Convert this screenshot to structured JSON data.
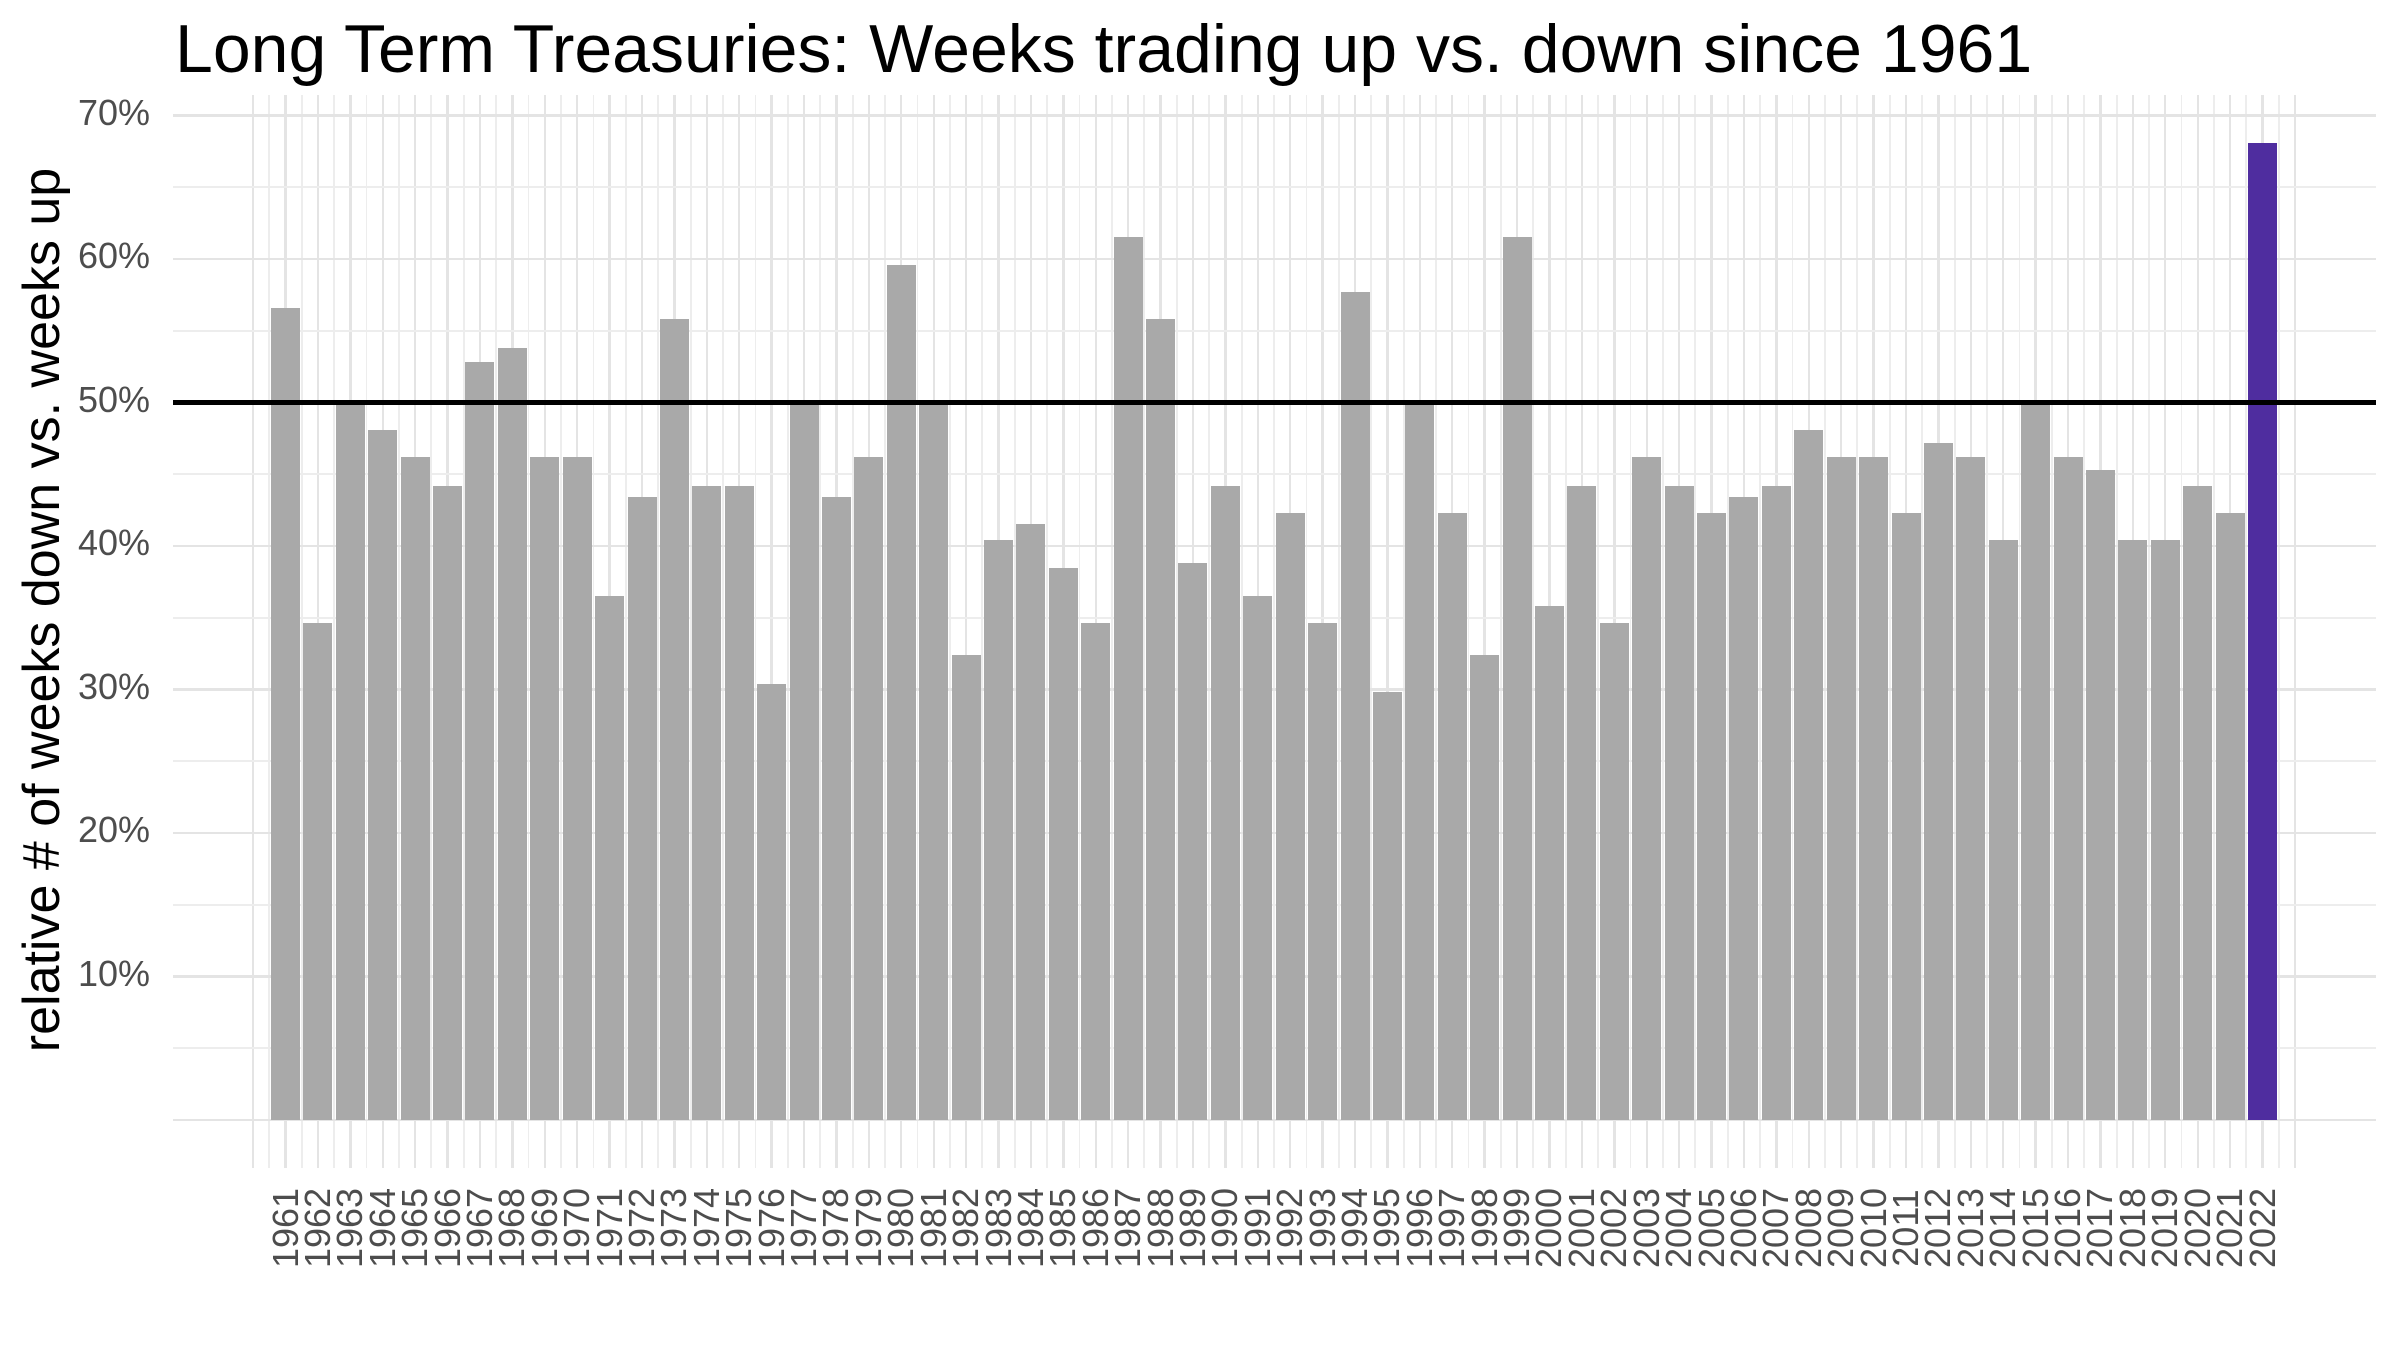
{
  "chart": {
    "title": "Long Term Treasuries: Weeks trading up vs. down since 1961",
    "ylabel": "relative # of weeks down vs. weeks up"
  },
  "chart_data": {
    "type": "bar",
    "title": "Long Term Treasuries: Weeks trading up vs. down since 1961",
    "xlabel": "",
    "ylabel": "relative # of weeks down vs. weeks up",
    "categories": [
      1961,
      1962,
      1963,
      1964,
      1965,
      1966,
      1967,
      1968,
      1969,
      1970,
      1971,
      1972,
      1973,
      1974,
      1975,
      1976,
      1977,
      1978,
      1979,
      1980,
      1981,
      1982,
      1983,
      1984,
      1985,
      1986,
      1987,
      1988,
      1989,
      1990,
      1991,
      1992,
      1993,
      1994,
      1995,
      1996,
      1997,
      1998,
      1999,
      2000,
      2001,
      2002,
      2003,
      2004,
      2005,
      2006,
      2007,
      2008,
      2009,
      2010,
      2011,
      2012,
      2013,
      2014,
      2015,
      2016,
      2017,
      2018,
      2019,
      2020,
      2021,
      2022
    ],
    "values": [
      56.6,
      34.6,
      50.0,
      48.1,
      46.2,
      44.2,
      52.8,
      53.8,
      46.2,
      46.2,
      36.5,
      43.4,
      55.8,
      44.2,
      44.2,
      30.4,
      50.0,
      43.4,
      46.2,
      59.6,
      50.0,
      32.4,
      40.4,
      41.5,
      38.5,
      34.6,
      61.5,
      55.8,
      38.8,
      44.2,
      36.5,
      42.3,
      34.6,
      57.7,
      29.8,
      50.0,
      42.3,
      32.4,
      61.5,
      35.8,
      44.2,
      34.6,
      46.2,
      44.2,
      42.3,
      43.4,
      44.2,
      48.1,
      46.2,
      46.2,
      42.3,
      47.2,
      46.2,
      40.4,
      50.0,
      46.2,
      45.3,
      40.4,
      40.4,
      44.2,
      42.3,
      68.1
    ],
    "highlight_category": 2022,
    "reference_line_value": 50,
    "y_tick_labels": [
      "10%",
      "20%",
      "30%",
      "40%",
      "50%",
      "60%",
      "70%"
    ],
    "ylim": [
      0,
      72
    ],
    "grid": "major and minor gridlines, horizontal and vertical, light gray",
    "legend": "none",
    "colors": {
      "bar": "#A9A9A9",
      "highlight_bar": "#4F2D9F",
      "reference_line": "#000000",
      "grid_major": "#E4E4E4",
      "grid_minor": "#EDEDED",
      "axis_text": "#4D4D4D",
      "title_text": "#000000",
      "background": "#FFFFFF"
    }
  }
}
